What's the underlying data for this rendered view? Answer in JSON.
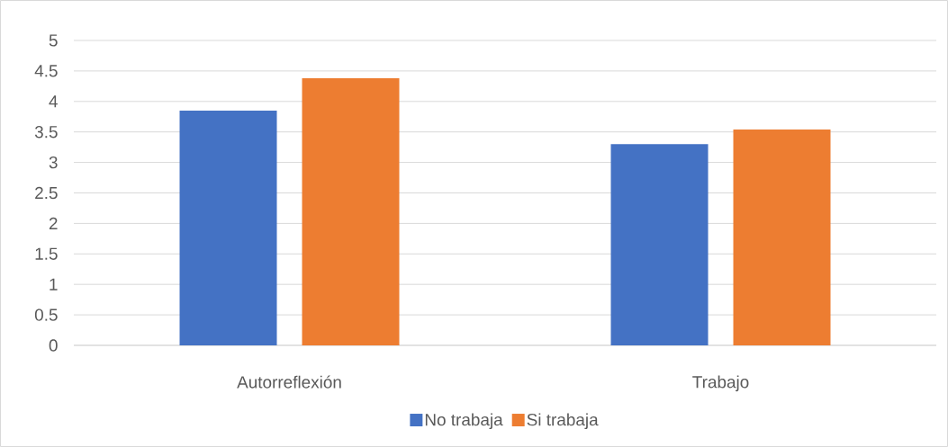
{
  "chart_data": {
    "type": "bar",
    "categories": [
      "Autorreflexión",
      "Trabajo"
    ],
    "series": [
      {
        "name": "No trabaja",
        "color": "#4472c4",
        "values": [
          3.85,
          3.3
        ]
      },
      {
        "name": "Si trabaja",
        "color": "#ed7d31",
        "values": [
          4.38,
          3.54
        ]
      }
    ],
    "ylim": [
      0,
      5
    ],
    "yticks": [
      0,
      0.5,
      1,
      1.5,
      2,
      2.5,
      3,
      3.5,
      4,
      4.5,
      5
    ],
    "grid": "y",
    "legend": "bottom"
  }
}
